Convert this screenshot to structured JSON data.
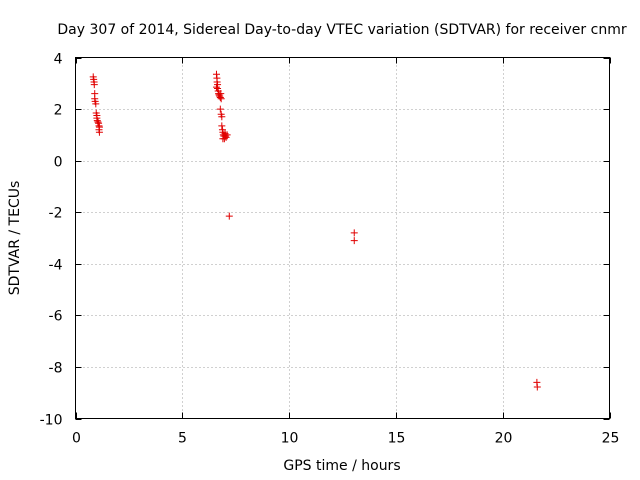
{
  "chart_data": {
    "type": "scatter",
    "title": "Day 307 of 2014, Sidereal Day-to-day VTEC variation (SDTVAR) for receiver cnmr",
    "xlabel": "GPS time / hours",
    "ylabel": "SDTVAR / TECUs",
    "xlim": [
      0,
      25
    ],
    "ylim": [
      -10,
      4
    ],
    "xticks": [
      0,
      5,
      10,
      15,
      20,
      25
    ],
    "yticks": [
      -10,
      -8,
      -6,
      -4,
      -2,
      0,
      2,
      4
    ],
    "xtick_labels": [
      "0",
      "5",
      "10",
      "15",
      "20",
      "25"
    ],
    "ytick_labels": [
      "-10",
      "-8",
      "-6",
      "-4",
      "-2",
      "0",
      "2",
      "4"
    ],
    "grid": true,
    "marker": "+",
    "series": [
      {
        "name": "SDTVAR",
        "color": "#e00000",
        "points": [
          [
            0.83,
            3.25
          ],
          [
            0.85,
            3.15
          ],
          [
            0.87,
            3.05
          ],
          [
            0.88,
            2.95
          ],
          [
            0.9,
            2.6
          ],
          [
            0.9,
            2.4
          ],
          [
            0.92,
            2.3
          ],
          [
            0.95,
            2.2
          ],
          [
            0.97,
            1.85
          ],
          [
            1.0,
            1.75
          ],
          [
            1.0,
            1.65
          ],
          [
            1.02,
            1.55
          ],
          [
            1.05,
            1.5
          ],
          [
            1.08,
            1.45
          ],
          [
            1.1,
            1.35
          ],
          [
            1.12,
            1.3
          ],
          [
            1.1,
            1.2
          ],
          [
            1.12,
            1.1
          ],
          [
            6.6,
            3.35
          ],
          [
            6.62,
            3.2
          ],
          [
            6.63,
            3.05
          ],
          [
            6.65,
            2.95
          ],
          [
            6.6,
            2.85
          ],
          [
            6.65,
            2.8
          ],
          [
            6.68,
            2.7
          ],
          [
            6.7,
            2.6
          ],
          [
            6.72,
            2.55
          ],
          [
            6.75,
            2.5
          ],
          [
            6.78,
            2.45
          ],
          [
            6.8,
            2.6
          ],
          [
            6.82,
            2.4
          ],
          [
            6.78,
            2.0
          ],
          [
            6.82,
            1.8
          ],
          [
            6.85,
            1.7
          ],
          [
            6.85,
            1.35
          ],
          [
            6.88,
            1.2
          ],
          [
            6.9,
            1.1
          ],
          [
            6.92,
            1.0
          ],
          [
            6.95,
            0.95
          ],
          [
            6.97,
            0.85
          ],
          [
            7.0,
            1.05
          ],
          [
            7.02,
            0.95
          ],
          [
            7.05,
            0.9
          ],
          [
            7.1,
            1.0
          ],
          [
            6.9,
            0.85
          ],
          [
            7.2,
            -2.15
          ],
          [
            13.05,
            -2.8
          ],
          [
            13.05,
            -3.1
          ],
          [
            21.6,
            -8.6
          ],
          [
            21.62,
            -8.78
          ]
        ]
      }
    ]
  }
}
